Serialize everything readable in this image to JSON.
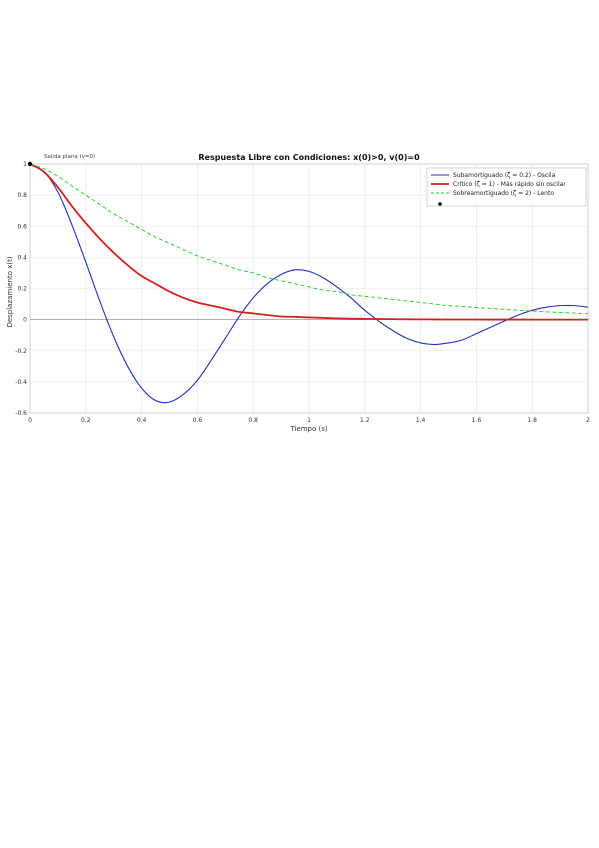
{
  "chart_data": {
    "type": "line",
    "title": "Respuesta Libre con Condiciones: x(0)>0, v(0)=0",
    "xlabel": "Tiempo (s)",
    "ylabel": "Desplazamiento x(t)",
    "xlim": [
      0,
      2
    ],
    "ylim": [
      -0.6,
      1
    ],
    "grid": true,
    "legend_position": "top-right",
    "x_ticks": [
      {
        "value": 0,
        "label": "0"
      },
      {
        "value": 0.2,
        "label": "0.2"
      },
      {
        "value": 0.4,
        "label": "0.4"
      },
      {
        "value": 0.6,
        "label": "0.6"
      },
      {
        "value": 0.8,
        "label": "0.8"
      },
      {
        "value": 1.0,
        "label": "1"
      },
      {
        "value": 1.2,
        "label": "1.2"
      },
      {
        "value": 1.4,
        "label": "1.4"
      },
      {
        "value": 1.6,
        "label": "1.6"
      },
      {
        "value": 1.8,
        "label": "1.8"
      },
      {
        "value": 2.0,
        "label": "2"
      }
    ],
    "y_ticks": [
      {
        "value": 1,
        "label": "1"
      },
      {
        "value": 0.8,
        "label": "0.8"
      },
      {
        "value": 0.6,
        "label": "0.6"
      },
      {
        "value": 0.4,
        "label": "0.4"
      },
      {
        "value": 0.2,
        "label": "0.2"
      },
      {
        "value": 0,
        "label": "0"
      },
      {
        "value": -0.2,
        "label": "-0.2"
      },
      {
        "value": -0.4,
        "label": "-0.4"
      },
      {
        "value": -0.6,
        "label": "-0.6"
      }
    ],
    "series": [
      {
        "name": "Subamortiguado (ζ = 0.2) - Oscila",
        "color": "#2431b8",
        "dash": "solid",
        "x": [
          0,
          0.05,
          0.1,
          0.15,
          0.2,
          0.25,
          0.3,
          0.35,
          0.4,
          0.45,
          0.5,
          0.55,
          0.6,
          0.65,
          0.7,
          0.75,
          0.8,
          0.85,
          0.9,
          0.95,
          1.0,
          1.05,
          1.1,
          1.15,
          1.2,
          1.25,
          1.3,
          1.35,
          1.4,
          1.45,
          1.5,
          1.55,
          1.6,
          1.65,
          1.7,
          1.75,
          1.8,
          1.85,
          1.9,
          1.95,
          2.0
        ],
        "y": [
          1.0,
          0.95,
          0.82,
          0.61,
          0.37,
          0.12,
          -0.11,
          -0.3,
          -0.44,
          -0.52,
          -0.53,
          -0.48,
          -0.39,
          -0.26,
          -0.12,
          0.02,
          0.14,
          0.23,
          0.29,
          0.32,
          0.31,
          0.27,
          0.21,
          0.14,
          0.06,
          -0.01,
          -0.07,
          -0.12,
          -0.15,
          -0.16,
          -0.15,
          -0.13,
          -0.09,
          -0.05,
          -0.01,
          0.03,
          0.06,
          0.08,
          0.09,
          0.09,
          0.08
        ]
      },
      {
        "name": "Crítico (ζ = 1) - Más rápido sin oscilar",
        "color": "#d42020",
        "dash": "solid",
        "x": [
          0,
          0.05,
          0.1,
          0.15,
          0.2,
          0.25,
          0.3,
          0.35,
          0.4,
          0.45,
          0.5,
          0.55,
          0.6,
          0.65,
          0.7,
          0.75,
          0.8,
          0.85,
          0.9,
          0.95,
          1.0,
          1.05,
          1.1,
          1.15,
          1.2,
          1.25,
          1.3,
          1.35,
          1.4,
          1.45,
          1.5,
          1.55,
          1.6,
          1.65,
          1.7,
          1.75,
          1.8,
          1.85,
          1.9,
          1.95,
          2.0
        ],
        "y": [
          1.0,
          0.95,
          0.85,
          0.73,
          0.62,
          0.52,
          0.43,
          0.35,
          0.28,
          0.23,
          0.18,
          0.14,
          0.11,
          0.09,
          0.07,
          0.05,
          0.04,
          0.03,
          0.02,
          0.018,
          0.014,
          0.011,
          0.008,
          0.006,
          0.005,
          0.004,
          0.003,
          0.002,
          0.0017,
          0.0013,
          0.001,
          0.0008,
          0.0006,
          0.0005,
          0.0004,
          0.0003,
          0.0002,
          0.0002,
          0.0001,
          0.0001,
          0.0001
        ]
      },
      {
        "name": "Sobreamortiguado (ζ = 2) - Lento",
        "color": "#22cc22",
        "dash": "dashed",
        "x": [
          0,
          0.05,
          0.1,
          0.15,
          0.2,
          0.25,
          0.3,
          0.35,
          0.4,
          0.45,
          0.5,
          0.55,
          0.6,
          0.65,
          0.7,
          0.75,
          0.8,
          0.85,
          0.9,
          0.95,
          1.0,
          1.05,
          1.1,
          1.15,
          1.2,
          1.25,
          1.3,
          1.35,
          1.4,
          1.45,
          1.5,
          1.55,
          1.6,
          1.65,
          1.7,
          1.75,
          1.8,
          1.85,
          1.9,
          1.95,
          2.0
        ],
        "y": [
          1.0,
          0.97,
          0.92,
          0.86,
          0.8,
          0.74,
          0.68,
          0.63,
          0.58,
          0.53,
          0.49,
          0.45,
          0.41,
          0.38,
          0.35,
          0.32,
          0.3,
          0.27,
          0.25,
          0.23,
          0.21,
          0.19,
          0.18,
          0.16,
          0.15,
          0.14,
          0.13,
          0.12,
          0.11,
          0.1,
          0.09,
          0.085,
          0.078,
          0.072,
          0.066,
          0.06,
          0.055,
          0.05,
          0.046,
          0.042,
          0.038
        ]
      }
    ],
    "marker": {
      "label": "Salida plana (v=0)",
      "x": 0,
      "y": 1.0,
      "color": "#000000"
    }
  }
}
